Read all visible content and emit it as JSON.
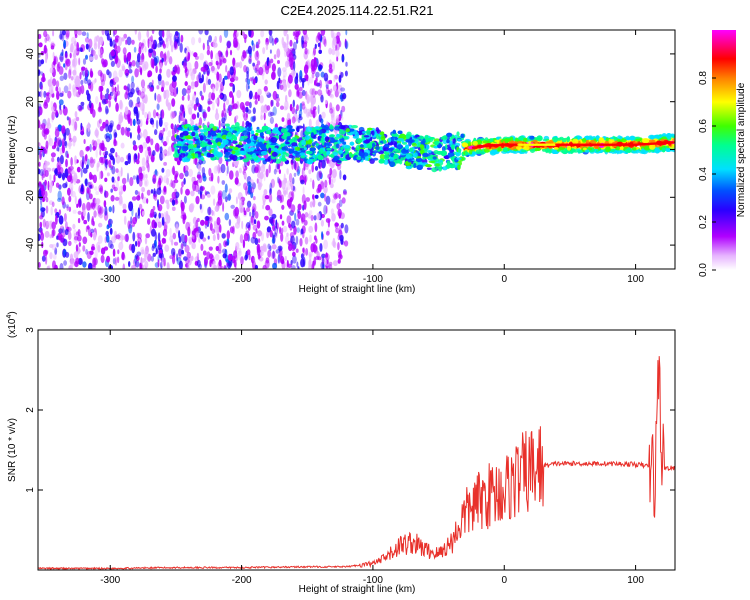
{
  "title": "C2E4.2025.114.22.51.R21",
  "chart_data": [
    {
      "type": "heatmap",
      "xlabel": "Height of straight line (km)",
      "ylabel": "Frequency (Hz)",
      "xlim": [
        -355,
        130
      ],
      "ylim": [
        -50,
        50
      ],
      "x_ticks": [
        -300,
        -200,
        -100,
        0,
        100
      ],
      "y_ticks": [
        -40,
        -20,
        0,
        20,
        40
      ],
      "colorbar": {
        "label": "Normalized spectral amplitude",
        "range": [
          0,
          1
        ],
        "ticks": [
          "0.0",
          "0.2",
          "0.4",
          "0.6",
          "0.8"
        ],
        "colormap": [
          "#ffffff",
          "#cc00ff",
          "#4400ff",
          "#0000ff",
          "#00ffff",
          "#00ff00",
          "#ffff00",
          "#ff7f00",
          "#ff0000",
          "#ff00ff"
        ]
      },
      "ridge": {
        "description": "dominant frequency band center vs height",
        "x": [
          -250,
          -200,
          -150,
          -100,
          -75,
          -50,
          -25,
          0,
          50,
          100,
          130
        ],
        "y": [
          3,
          3,
          2,
          2,
          0,
          -2,
          1,
          2,
          2,
          2,
          3
        ]
      },
      "grid": false
    },
    {
      "type": "line",
      "xlabel": "Height of straight line (km)",
      "ylabel": "SNR (10 * v/v)",
      "multiplier_label": "(x10",
      "multiplier_exp": "4",
      "xlim": [
        -355,
        130
      ],
      "ylim": [
        0,
        3
      ],
      "x_ticks": [
        -300,
        -200,
        -100,
        0,
        100
      ],
      "y_ticks": [
        1,
        2,
        3
      ],
      "series": [
        {
          "color": "#e8302a",
          "x": [
            -355,
            -300,
            -250,
            -200,
            -150,
            -120,
            -100,
            -90,
            -80,
            -70,
            -60,
            -50,
            -40,
            -30,
            -20,
            -10,
            0,
            10,
            20,
            30,
            40,
            60,
            80,
            100,
            110,
            115,
            118,
            120,
            122,
            130
          ],
          "y": [
            0.02,
            0.02,
            0.03,
            0.03,
            0.04,
            0.04,
            0.08,
            0.15,
            0.3,
            0.35,
            0.25,
            0.2,
            0.35,
            0.7,
            0.85,
            0.95,
            1.0,
            1.15,
            1.25,
            1.3,
            1.33,
            1.33,
            1.33,
            1.32,
            1.3,
            1.2,
            2.6,
            1.35,
            1.28,
            1.27
          ]
        }
      ],
      "grid": false
    }
  ]
}
